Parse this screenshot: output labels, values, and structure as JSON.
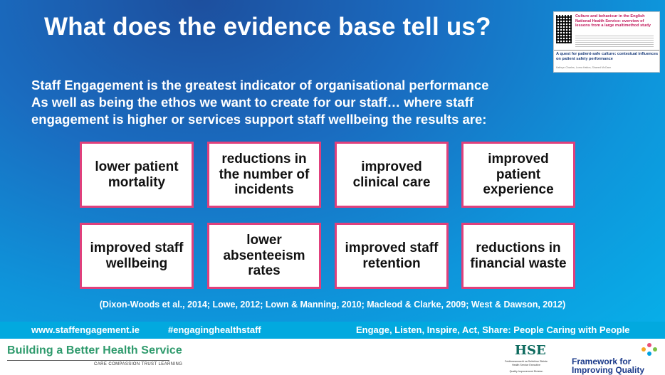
{
  "title": "What does the evidence base tell us?",
  "thumbnail": {
    "paper1_title": "Culture and behaviour in the English National Health Service: overview of lessons from a large multimethod study",
    "paper2_title": "A quest for patient-safe culture: contextual influences on patient safety performance",
    "open_access": "OPEN ACCESS",
    "authors2": "Kathryn Charles, Lorna Hatton, Shaeed McCann"
  },
  "intro": {
    "line1": "Staff Engagement is the greatest indicator of organisational performance",
    "line2": "As well as being the ethos we want to create for our staff… where staff",
    "line3": "engagement is higher or services support staff wellbeing the results are:"
  },
  "outcomes_row1": [
    "lower patient mortality",
    "reductions in the number of incidents",
    "improved clinical care",
    "improved patient experience"
  ],
  "outcomes_row2": [
    "improved staff wellbeing",
    "lower absenteeism rates",
    "improved staff retention",
    "reductions in financial waste"
  ],
  "references": "(Dixon-Woods et al., 2014; Lowe, 2012; Lown & Manning, 2010; Macleod & Clarke, 2009; West & Dawson, 2012)",
  "footer": {
    "website": "www.staffengagement.ie",
    "hashtag": "#engaginghealthstaff",
    "motto": "Engage, Listen, Inspire, Act, Share:  People Caring with People"
  },
  "branding": {
    "bbhs": "Building a Better Health Service",
    "bbhs_tagline": "CARE  COMPASSION  TRUST  LEARNING",
    "hse_mark": "HSE",
    "hse_line1": "Feidhmeannacht na Seirbhíse Sláinte",
    "hse_line2": "Health Service Executive",
    "hse_line3": "Quality Improvement Division",
    "ffiq_line1": "Framework for",
    "ffiq_line2": "Improving Quality"
  },
  "colors": {
    "card_border": "#e0407c",
    "footer_bar": "#02a9df",
    "bbhs_green": "#2e9a6c",
    "ffiq_blue": "#1b3a8a"
  }
}
